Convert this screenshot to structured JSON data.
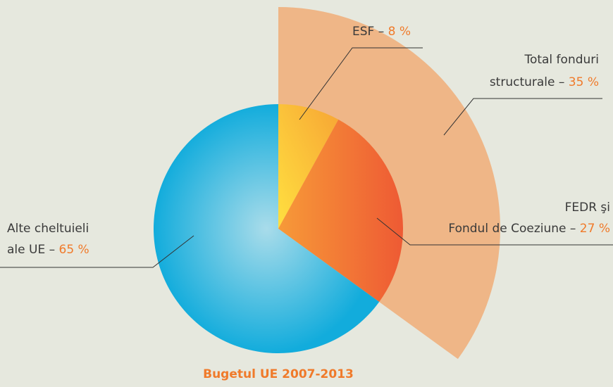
{
  "chart_data": {
    "type": "pie",
    "title": "Bugetul UE 2007-2013",
    "categories": [
      [
        "ESF –"
      ],
      [
        "FEDR şi",
        "Fondul de Coeziune –"
      ],
      [
        "Alte cheltuieli",
        "ale UE –"
      ]
    ],
    "values": [
      8,
      27,
      65
    ],
    "value_labels": [
      "8 %",
      "27 %",
      "65 %"
    ],
    "colors": [
      "#f8b334",
      "#f06a33",
      "#2bb3df"
    ],
    "group": {
      "label": [
        "Total fonduri",
        "structurale –"
      ],
      "value": 35,
      "value_label": "35 %",
      "color": "#f0ad78"
    }
  }
}
